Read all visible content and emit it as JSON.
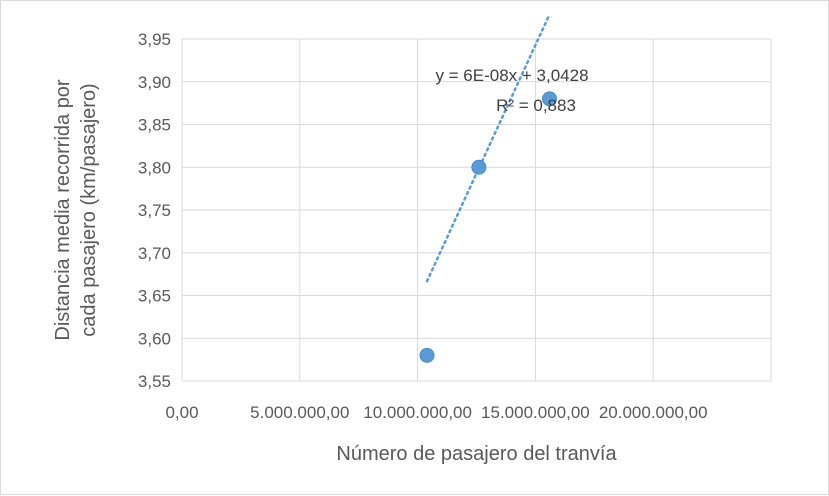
{
  "chart_data": {
    "type": "scatter",
    "title": "",
    "xlabel": "Número de pasajero del tranvía",
    "ylabel_lines": [
      "Distancia media recorrida por",
      "cada pasajero (km/pasajero)"
    ],
    "xlim": [
      0,
      25000000
    ],
    "ylim": [
      3.55,
      3.95
    ],
    "x_ticks": [
      {
        "value": 0,
        "label": "0,00"
      },
      {
        "value": 5000000,
        "label": "5.000.000,00"
      },
      {
        "value": 10000000,
        "label": "10.000.000,00"
      },
      {
        "value": 15000000,
        "label": "15.000.000,00"
      },
      {
        "value": 20000000,
        "label": "20.000.000,00"
      }
    ],
    "y_ticks": [
      {
        "value": 3.55,
        "label": "3,55"
      },
      {
        "value": 3.6,
        "label": "3,60"
      },
      {
        "value": 3.65,
        "label": "3,65"
      },
      {
        "value": 3.7,
        "label": "3,70"
      },
      {
        "value": 3.75,
        "label": "3,75"
      },
      {
        "value": 3.8,
        "label": "3,80"
      },
      {
        "value": 3.85,
        "label": "3,85"
      },
      {
        "value": 3.9,
        "label": "3,90"
      },
      {
        "value": 3.95,
        "label": "3,95"
      }
    ],
    "grid": true,
    "legend": "none",
    "series": [
      {
        "color": "#5b9bd5",
        "points": [
          {
            "x": 10400000,
            "y": 3.58
          },
          {
            "x": 12600000,
            "y": 3.8
          },
          {
            "x": 15600000,
            "y": 3.88
          }
        ]
      }
    ],
    "trendline": {
      "type": "linear",
      "style": "dotted",
      "color": "#5b9bd5",
      "x_range": [
        10400000,
        15600000
      ],
      "slope": 6e-08,
      "intercept": 3.0428,
      "equation_label": "y = 6E-08x + 3,0428",
      "r2_label": "R² = 0,883"
    },
    "colors": {
      "grid": "#d9d9d9",
      "text": "#595959",
      "annotation": "#404040"
    }
  }
}
